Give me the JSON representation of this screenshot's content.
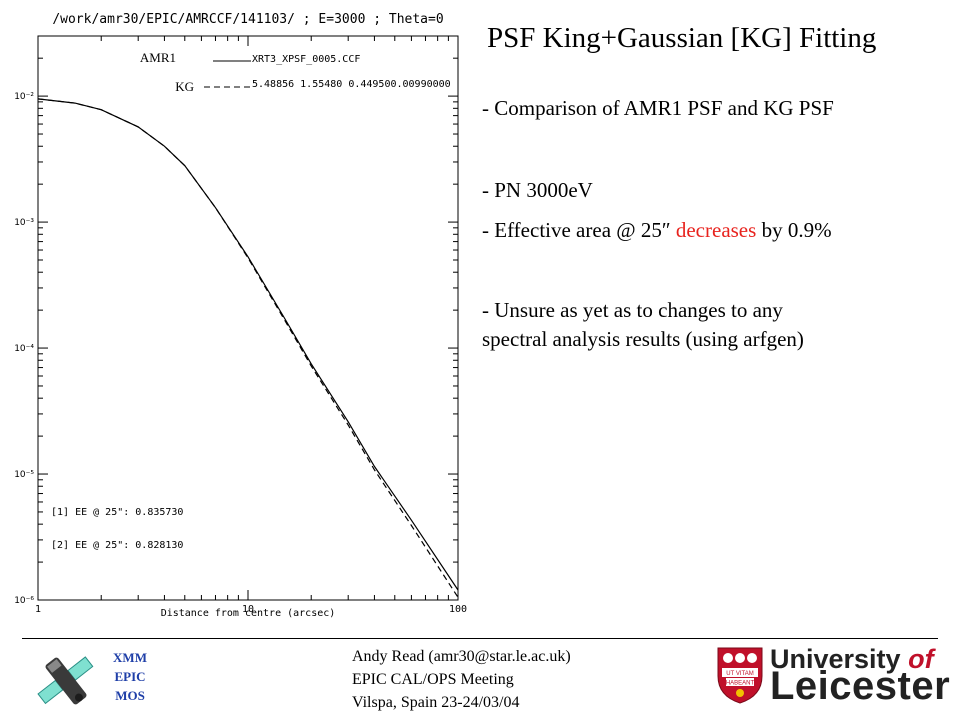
{
  "slide": {
    "title": "PSF King+Gaussian [KG] Fitting",
    "bullets": [
      {
        "pre": "- Comparison of AMR1 PSF and KG PSF",
        "hl": "",
        "post": ""
      },
      {
        "pre": "- PN 3000eV",
        "hl": "",
        "post": ""
      },
      {
        "pre": "- Effective area @ 25″ ",
        "hl": "decreases",
        "post": " by 0.9%"
      },
      {
        "pre": "- Unsure as yet as to changes to any",
        "hl": "",
        "post": ""
      },
      {
        "pre": "spectral analysis results (using arfgen)",
        "hl": "",
        "post": ""
      }
    ],
    "highlight_color": "#e8231e"
  },
  "footer": {
    "mission": [
      "XMM",
      "EPIC",
      "MOS"
    ],
    "lines": [
      "Andy Read (amr30@star.le.ac.uk)",
      "EPIC CAL/OPS Meeting",
      "Vilspa, Spain 23-24/03/04"
    ],
    "university": {
      "word1": "University",
      "word2": "of",
      "word3": "Leicester",
      "crest_motto": "UT VITAM HABEANT"
    }
  },
  "chart_data": {
    "type": "line",
    "title": "/work/amr30/EPIC/AMRCCF/141103/ ; E=3000 ; Theta=0",
    "xlabel": "Distance from centre (arcsec)",
    "ylabel": "",
    "xscale": "log",
    "yscale": "log",
    "xlim": [
      1,
      100
    ],
    "ylim": [
      1e-06,
      0.03
    ],
    "x_ticks": [
      "1",
      "10",
      "100"
    ],
    "y_ticks": [
      {
        "value": 0.01,
        "label": "10⁻²"
      },
      {
        "value": 0.001,
        "label": "10⁻³"
      },
      {
        "value": 0.0001,
        "label": "10⁻⁴"
      },
      {
        "value": 1e-05,
        "label": "10⁻⁵"
      },
      {
        "value": 1e-06,
        "label": "10⁻⁶"
      }
    ],
    "series": [
      {
        "name": "AMR1",
        "legend_text": "XRT3_XPSF_0005.CCF",
        "style": "solid",
        "x": [
          1,
          1.5,
          2,
          3,
          4,
          5,
          7,
          10,
          15,
          20,
          30,
          40,
          60,
          100
        ],
        "y": [
          0.0095,
          0.0088,
          0.0078,
          0.0057,
          0.004,
          0.0028,
          0.0013,
          0.00053,
          0.00017,
          7.5e-05,
          2.6e-05,
          1.15e-05,
          4.3e-06,
          1.2e-06
        ]
      },
      {
        "name": "KG",
        "legend_text": "5.48856  1.55480  0.449500.00990000",
        "style": "dashed",
        "x": [
          1,
          1.5,
          2,
          3,
          4,
          5,
          7,
          10,
          15,
          20,
          30,
          40,
          60,
          100
        ],
        "y": [
          0.0095,
          0.0088,
          0.0078,
          0.0057,
          0.004,
          0.0028,
          0.0013,
          0.00052,
          0.000165,
          7.2e-05,
          2.45e-05,
          1.08e-05,
          3.9e-06,
          1.05e-06
        ]
      }
    ],
    "annotations": [
      "[1] EE @ 25\": 0.835730",
      "[2] EE @ 25\": 0.828130"
    ]
  }
}
